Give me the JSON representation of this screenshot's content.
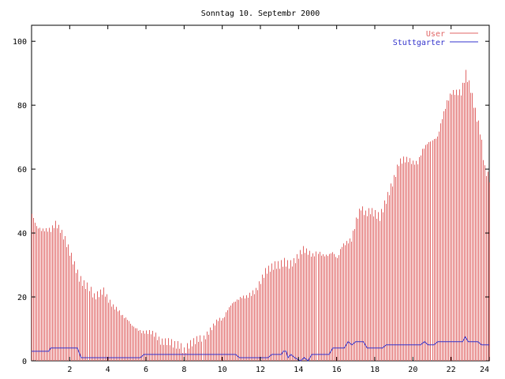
{
  "chart_data": {
    "type": "bar",
    "title": "Sonntag 10. Septembr 2000",
    "xlabel": "",
    "ylabel": "",
    "xlim": [
      0,
      24
    ],
    "ylim": [
      0,
      105
    ],
    "xticks": [
      2,
      4,
      6,
      8,
      10,
      12,
      14,
      16,
      18,
      20,
      22,
      24
    ],
    "yticks": [
      0,
      20,
      40,
      60,
      80,
      100
    ],
    "grid": false,
    "legend_position": "top-right",
    "series": [
      {
        "name": "User",
        "style": "impulses",
        "color": "#e06666",
        "points": [
          [
            0.0,
            46
          ],
          [
            0.25,
            42
          ],
          [
            0.5,
            41
          ],
          [
            0.75,
            41
          ],
          [
            1.0,
            41
          ],
          [
            1.25,
            43
          ],
          [
            1.5,
            41
          ],
          [
            1.75,
            38
          ],
          [
            2.0,
            34
          ],
          [
            2.25,
            30
          ],
          [
            2.5,
            26
          ],
          [
            2.75,
            24
          ],
          [
            3.0,
            23
          ],
          [
            3.25,
            20
          ],
          [
            3.5,
            21
          ],
          [
            3.75,
            22
          ],
          [
            4.0,
            19
          ],
          [
            4.25,
            17
          ],
          [
            4.5,
            16
          ],
          [
            4.75,
            14
          ],
          [
            5.0,
            13
          ],
          [
            5.25,
            11
          ],
          [
            5.5,
            10
          ],
          [
            5.75,
            9
          ],
          [
            6.0,
            9
          ],
          [
            6.25,
            9
          ],
          [
            6.5,
            8
          ],
          [
            6.75,
            6
          ],
          [
            7.0,
            6
          ],
          [
            7.25,
            6
          ],
          [
            7.5,
            5
          ],
          [
            7.75,
            5
          ],
          [
            8.0,
            3
          ],
          [
            8.25,
            5
          ],
          [
            8.5,
            6
          ],
          [
            8.75,
            7
          ],
          [
            9.0,
            7
          ],
          [
            9.25,
            9
          ],
          [
            9.5,
            11
          ],
          [
            9.75,
            13
          ],
          [
            10.0,
            13
          ],
          [
            10.25,
            16
          ],
          [
            10.5,
            18
          ],
          [
            10.75,
            19
          ],
          [
            11.0,
            20
          ],
          [
            11.25,
            20
          ],
          [
            11.5,
            21
          ],
          [
            11.75,
            22
          ],
          [
            12.0,
            25
          ],
          [
            12.25,
            28
          ],
          [
            12.5,
            29
          ],
          [
            12.75,
            30
          ],
          [
            13.0,
            30
          ],
          [
            13.25,
            31
          ],
          [
            13.5,
            30
          ],
          [
            13.75,
            31
          ],
          [
            14.0,
            33
          ],
          [
            14.25,
            35
          ],
          [
            14.5,
            34
          ],
          [
            14.75,
            33
          ],
          [
            15.0,
            34
          ],
          [
            15.25,
            33
          ],
          [
            15.5,
            33
          ],
          [
            15.75,
            34
          ],
          [
            16.0,
            32
          ],
          [
            16.25,
            36
          ],
          [
            16.5,
            37
          ],
          [
            16.75,
            38
          ],
          [
            17.0,
            44
          ],
          [
            17.25,
            48
          ],
          [
            17.5,
            46
          ],
          [
            17.75,
            47
          ],
          [
            18.0,
            46
          ],
          [
            18.25,
            45
          ],
          [
            18.5,
            49
          ],
          [
            18.75,
            53
          ],
          [
            19.0,
            57
          ],
          [
            19.25,
            62
          ],
          [
            19.5,
            63
          ],
          [
            19.75,
            63
          ],
          [
            20.0,
            62
          ],
          [
            20.25,
            62
          ],
          [
            20.5,
            66
          ],
          [
            20.75,
            68
          ],
          [
            21.0,
            69
          ],
          [
            21.25,
            70
          ],
          [
            21.5,
            76
          ],
          [
            21.75,
            81
          ],
          [
            22.0,
            84
          ],
          [
            22.25,
            84
          ],
          [
            22.5,
            84
          ],
          [
            22.75,
            90
          ],
          [
            23.0,
            85
          ],
          [
            23.25,
            78
          ],
          [
            23.5,
            72
          ],
          [
            23.75,
            60
          ],
          [
            24.0,
            57
          ]
        ]
      },
      {
        "name": "Stuttgarter",
        "style": "line",
        "color": "#3333cc",
        "points": [
          [
            0.0,
            3
          ],
          [
            0.9,
            3
          ],
          [
            1.0,
            4
          ],
          [
            2.4,
            4
          ],
          [
            2.6,
            1
          ],
          [
            5.7,
            1
          ],
          [
            5.9,
            2
          ],
          [
            10.7,
            2
          ],
          [
            10.9,
            1
          ],
          [
            12.4,
            1
          ],
          [
            12.6,
            2
          ],
          [
            13.1,
            2
          ],
          [
            13.2,
            3
          ],
          [
            13.35,
            3
          ],
          [
            13.45,
            1
          ],
          [
            13.6,
            2
          ],
          [
            13.8,
            1
          ],
          [
            14.1,
            0
          ],
          [
            14.3,
            1
          ],
          [
            14.5,
            0
          ],
          [
            14.7,
            2
          ],
          [
            15.6,
            2
          ],
          [
            15.8,
            4
          ],
          [
            16.4,
            4
          ],
          [
            16.6,
            6
          ],
          [
            16.8,
            5
          ],
          [
            17.0,
            6
          ],
          [
            17.4,
            6
          ],
          [
            17.6,
            4
          ],
          [
            18.4,
            4
          ],
          [
            18.6,
            5
          ],
          [
            20.4,
            5
          ],
          [
            20.6,
            6
          ],
          [
            20.8,
            5
          ],
          [
            21.1,
            5
          ],
          [
            21.3,
            6
          ],
          [
            22.6,
            6
          ],
          [
            22.75,
            7.5
          ],
          [
            22.9,
            6
          ],
          [
            23.4,
            6
          ],
          [
            23.6,
            5
          ],
          [
            24.0,
            5
          ]
        ]
      }
    ]
  }
}
